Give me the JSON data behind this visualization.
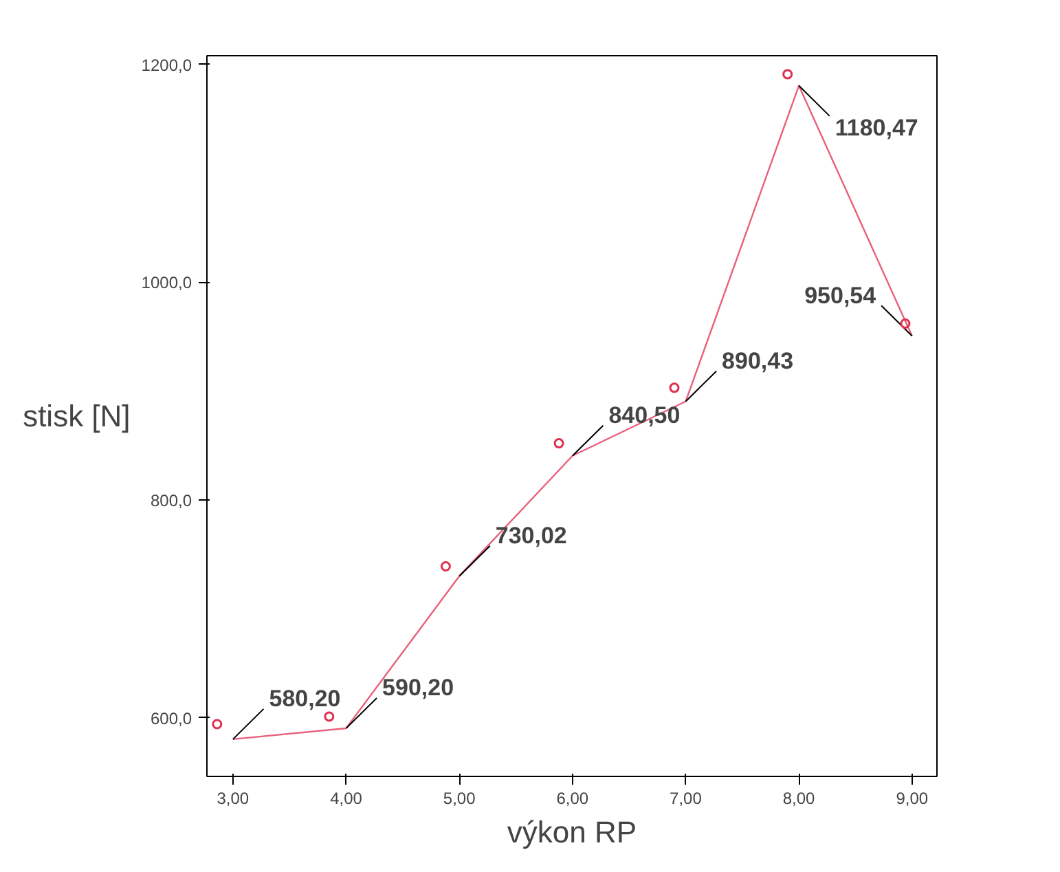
{
  "chart_data": {
    "type": "line",
    "xlabel": "výkon RP",
    "ylabel": "stisk [N]",
    "xlim": [
      2.77,
      9.22
    ],
    "ylim": [
      546,
      1208
    ],
    "xticks": [
      {
        "value": 3,
        "label": "3,00"
      },
      {
        "value": 4,
        "label": "4,00"
      },
      {
        "value": 5,
        "label": "5,00"
      },
      {
        "value": 6,
        "label": "6,00"
      },
      {
        "value": 7,
        "label": "7,00"
      },
      {
        "value": 8,
        "label": "8,00"
      },
      {
        "value": 9,
        "label": "9,00"
      }
    ],
    "yticks": [
      {
        "value": 600,
        "label": "600,0"
      },
      {
        "value": 800,
        "label": "800,0"
      },
      {
        "value": 1000,
        "label": "1000,0"
      },
      {
        "value": 1200,
        "label": "1200,0"
      }
    ],
    "grid": false,
    "series": [
      {
        "color": "#e8607a",
        "x": [
          3,
          4,
          5,
          6,
          7,
          8,
          9
        ],
        "values": [
          580.2,
          590.2,
          730.02,
          840.5,
          890.43,
          1180.47,
          950.54
        ],
        "value_labels": [
          "580,20",
          "590,20",
          "730,02",
          "840,50",
          "890,43",
          "1180,47",
          "950,54"
        ],
        "marker": "none"
      },
      {
        "type": "scatter",
        "color": "#e03050",
        "x": [
          2.86,
          3.85,
          4.88,
          5.88,
          6.9,
          7.9,
          8.94
        ],
        "values": [
          594,
          601,
          739,
          852,
          903,
          1191,
          962
        ],
        "marker": "circle"
      }
    ]
  }
}
